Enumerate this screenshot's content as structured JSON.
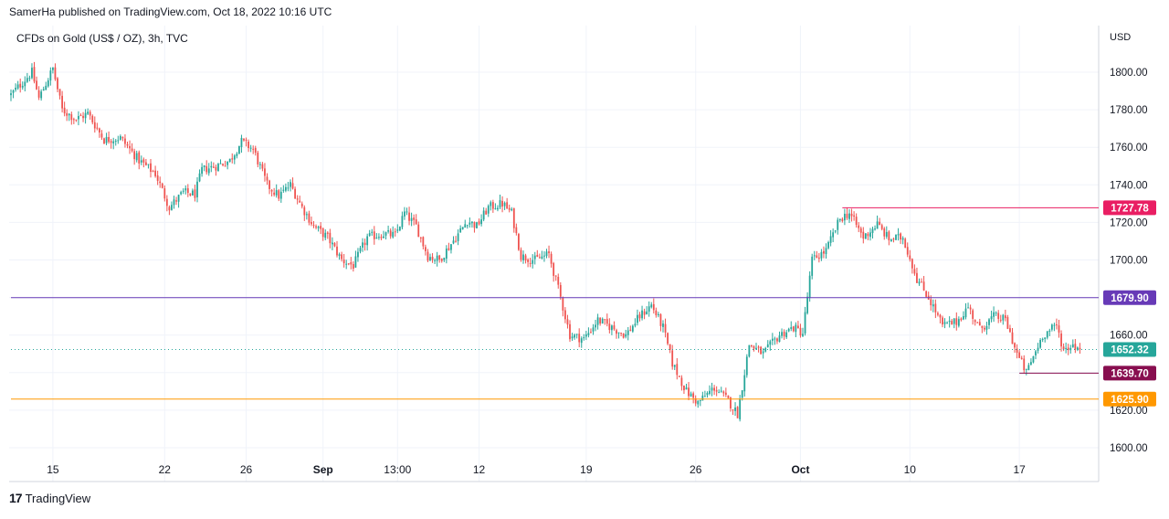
{
  "header": {
    "published": "SamerHa published on TradingView.com, Oct 18, 2022 10:16 UTC"
  },
  "footer": {
    "brand": "TradingView",
    "logo_glyph": "17"
  },
  "chart_data": {
    "type": "candlestick",
    "title": "CFDs on Gold (US$ / OZ), 3h, TVC",
    "currency": "USD",
    "ylim": [
      1590,
      1830
    ],
    "yticks": [
      1600,
      1620,
      1640,
      1660,
      1680,
      1700,
      1720,
      1740,
      1760,
      1780,
      1800
    ],
    "ytick_labels": [
      "1600.00",
      "1620.00",
      "1640.00",
      "1660.00",
      "1680.00",
      "1700.00",
      "1720.00",
      "1740.00",
      "1760.00",
      "1780.00",
      "1800.00"
    ],
    "xticks": [
      {
        "label": "15",
        "bar": 18
      },
      {
        "label": "22",
        "bar": 66
      },
      {
        "label": "26",
        "bar": 101
      },
      {
        "label": "Sep",
        "bar": 134,
        "bold": true
      },
      {
        "label": "13:00",
        "bar": 166
      },
      {
        "label": "12",
        "bar": 201
      },
      {
        "label": "19",
        "bar": 247
      },
      {
        "label": "26",
        "bar": 294
      },
      {
        "label": "Oct",
        "bar": 339,
        "bold": true
      },
      {
        "label": "10",
        "bar": 386
      },
      {
        "label": "17",
        "bar": 433
      }
    ],
    "bar_count": 460,
    "up_color": "#26a69a",
    "down_color": "#ef5350",
    "anchors": [
      [
        0,
        1788
      ],
      [
        9,
        1800
      ],
      [
        12,
        1786
      ],
      [
        18,
        1802
      ],
      [
        22,
        1780
      ],
      [
        28,
        1775
      ],
      [
        33,
        1778
      ],
      [
        40,
        1764
      ],
      [
        47,
        1765
      ],
      [
        55,
        1753
      ],
      [
        62,
        1746
      ],
      [
        68,
        1728
      ],
      [
        74,
        1736
      ],
      [
        79,
        1735
      ],
      [
        82,
        1748
      ],
      [
        88,
        1750
      ],
      [
        94,
        1753
      ],
      [
        99,
        1763
      ],
      [
        104,
        1759
      ],
      [
        110,
        1740
      ],
      [
        115,
        1734
      ],
      [
        120,
        1740
      ],
      [
        125,
        1728
      ],
      [
        130,
        1718
      ],
      [
        136,
        1712
      ],
      [
        142,
        1700
      ],
      [
        147,
        1697
      ],
      [
        153,
        1712
      ],
      [
        160,
        1714
      ],
      [
        165,
        1713
      ],
      [
        169,
        1725
      ],
      [
        174,
        1718
      ],
      [
        179,
        1702
      ],
      [
        184,
        1700
      ],
      [
        191,
        1712
      ],
      [
        196,
        1721
      ],
      [
        200,
        1718
      ],
      [
        205,
        1728
      ],
      [
        211,
        1730
      ],
      [
        215,
        1725
      ],
      [
        219,
        1702
      ],
      [
        225,
        1700
      ],
      [
        231,
        1703
      ],
      [
        236,
        1680
      ],
      [
        240,
        1660
      ],
      [
        246,
        1658
      ],
      [
        252,
        1668
      ],
      [
        258,
        1664
      ],
      [
        264,
        1660
      ],
      [
        270,
        1670
      ],
      [
        275,
        1676
      ],
      [
        280,
        1664
      ],
      [
        284,
        1645
      ],
      [
        290,
        1630
      ],
      [
        295,
        1624
      ],
      [
        302,
        1632
      ],
      [
        308,
        1625
      ],
      [
        312,
        1618
      ],
      [
        317,
        1655
      ],
      [
        323,
        1650
      ],
      [
        330,
        1660
      ],
      [
        336,
        1664
      ],
      [
        340,
        1661
      ],
      [
        344,
        1700
      ],
      [
        350,
        1705
      ],
      [
        356,
        1722
      ],
      [
        360,
        1725
      ],
      [
        366,
        1712
      ],
      [
        372,
        1719
      ],
      [
        377,
        1711
      ],
      [
        383,
        1712
      ],
      [
        389,
        1690
      ],
      [
        394,
        1680
      ],
      [
        400,
        1665
      ],
      [
        406,
        1667
      ],
      [
        411,
        1675
      ],
      [
        416,
        1663
      ],
      [
        422,
        1670
      ],
      [
        427,
        1668
      ],
      [
        432,
        1650
      ],
      [
        436,
        1640
      ],
      [
        443,
        1660
      ],
      [
        449,
        1665
      ],
      [
        452,
        1652
      ],
      [
        456,
        1655
      ],
      [
        459,
        1652.32
      ]
    ],
    "levels": [
      {
        "label": "1727.78",
        "value": 1727.78,
        "color": "#e91e63",
        "from_bar": 357,
        "style": "solid"
      },
      {
        "label": "1679.90",
        "value": 1679.9,
        "color": "#673ab7",
        "from_bar": 0,
        "style": "solid"
      },
      {
        "label": "1652.32",
        "value": 1652.32,
        "color": "#26a69a",
        "from_bar": 0,
        "style": "dotted"
      },
      {
        "label": "1639.70",
        "value": 1639.7,
        "color": "#880e4f",
        "from_bar": 433,
        "style": "solid"
      },
      {
        "label": "1625.90",
        "value": 1625.9,
        "color": "#ff9800",
        "from_bar": 0,
        "style": "solid"
      }
    ]
  }
}
